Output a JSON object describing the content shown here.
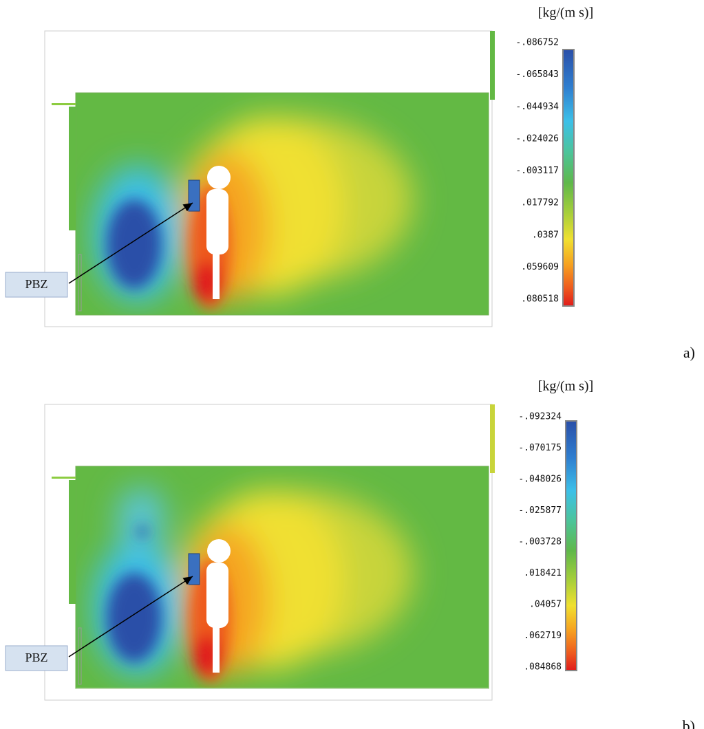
{
  "panels": [
    {
      "unit": "[kg/(m s)]",
      "ticks": [
        "-.086752",
        "-.065843",
        "-.044934",
        "-.024026",
        "-.003117",
        ".017792",
        ".0387",
        ".059609",
        ".080518"
      ],
      "label": "PBZ",
      "tag": "a)"
    },
    {
      "unit": "[kg/(m s)]",
      "ticks": [
        "-.092324",
        "-.070175",
        "-.048026",
        "-.025877",
        "-.003728",
        ".018421",
        ".04057",
        ".062719",
        ".084868"
      ],
      "label": "PBZ",
      "tag": "b)"
    }
  ]
}
